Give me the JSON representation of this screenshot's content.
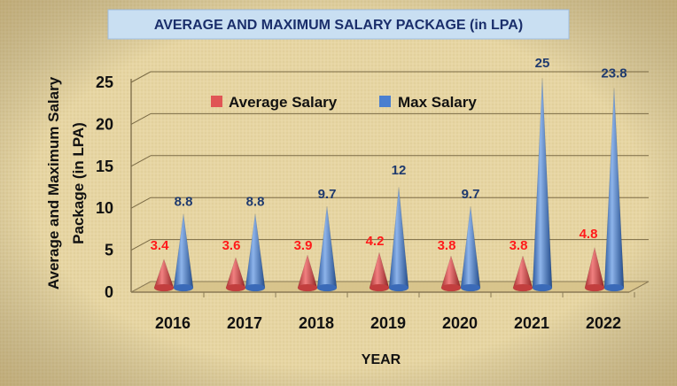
{
  "chart_data": {
    "type": "bar",
    "bar_shape": "cone",
    "title": "AVERAGE AND MAXIMUM SALARY PACKAGE (in LPA)",
    "xlabel": "YEAR",
    "ylabel_line1": "Average and Maximum  Salary",
    "ylabel_line2": "Package (in LPA)",
    "categories": [
      "2016",
      "2017",
      "2018",
      "2019",
      "2020",
      "2021",
      "2022"
    ],
    "ylim": [
      0,
      25
    ],
    "yticks": [
      "0",
      "5",
      "10",
      "15",
      "20",
      "25"
    ],
    "grid": true,
    "legend_position": "top-left inside plot",
    "series": [
      {
        "name": "Average Salary",
        "color": "#e05555",
        "label_color": "#ff1a1a",
        "values": [
          3.4,
          3.6,
          3.9,
          4.2,
          3.8,
          3.8,
          4.8
        ],
        "labels": [
          "3.4",
          "3.6",
          "3.9",
          "4.2",
          "3.8",
          "3.8",
          "4.8"
        ]
      },
      {
        "name": "Max Salary",
        "color": "#4a7fd0",
        "label_color": "#1f3a6e",
        "values": [
          8.8,
          8.8,
          9.7,
          12,
          9.7,
          25,
          23.8
        ],
        "labels": [
          "8.8",
          "8.8",
          "9.7",
          "12",
          "9.7",
          "25",
          "23.8"
        ]
      }
    ],
    "colors": {
      "background": "#e8d8a8",
      "title_bg": "#c9dff2",
      "title_text": "#1a2e6b",
      "axis_text": "#111111"
    }
  }
}
